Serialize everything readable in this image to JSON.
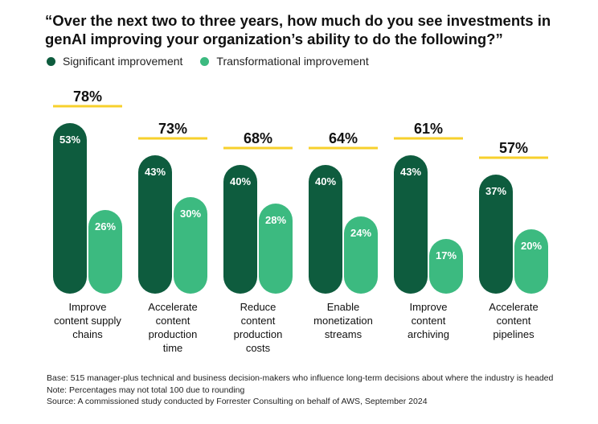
{
  "title": "“Over the next two to three years, how much do you see investments in genAI improving your organization’s ability to do the following?”",
  "colors": {
    "significant": "#0e5c3e",
    "transformational": "#3cba80",
    "total_line": "#f7d02c",
    "bar_label": "#ffffff"
  },
  "chart_data": {
    "type": "bar",
    "categories": [
      "Improve content supply chains",
      "Accelerate content production time",
      "Reduce content production costs",
      "Enable monetization streams",
      "Improve content archiving",
      "Accelerate content pipelines"
    ],
    "category_lines": [
      [
        "Improve",
        "content supply",
        "chains"
      ],
      [
        "Accelerate",
        "content",
        "production",
        "time"
      ],
      [
        "Reduce",
        "content",
        "production",
        "costs"
      ],
      [
        "Enable",
        "monetization",
        "streams"
      ],
      [
        "Improve",
        "content",
        "archiving"
      ],
      [
        "Accelerate",
        "content",
        "pipelines"
      ]
    ],
    "series": [
      {
        "name": "Significant improvement",
        "values": [
          53,
          43,
          40,
          40,
          43,
          37
        ]
      },
      {
        "name": "Transformational improvement",
        "values": [
          26,
          30,
          28,
          24,
          17,
          20
        ]
      }
    ],
    "totals": [
      78,
      73,
      68,
      64,
      61,
      57
    ],
    "value_suffix": "%",
    "ylim": [
      0,
      55
    ]
  },
  "notes": [
    "Base: 515 manager-plus technical and business decision-makers who influence long-term decisions about where the industry is headed",
    "Note: Percentages may not total 100 due to rounding",
    "Source: A commissioned study conducted by Forrester Consulting on behalf of AWS, September 2024"
  ]
}
